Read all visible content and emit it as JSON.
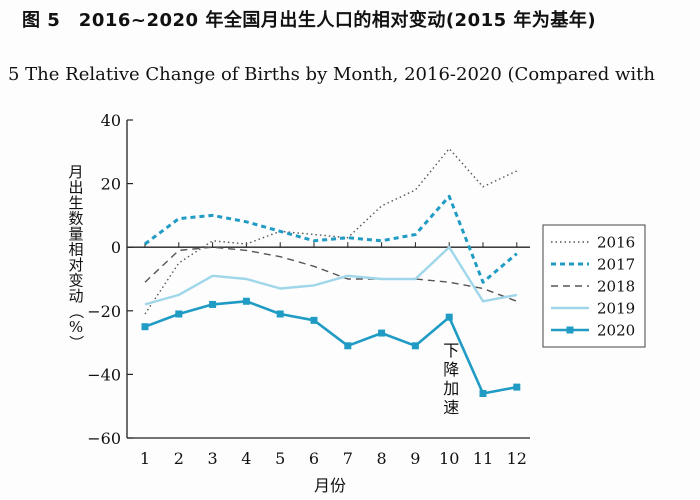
{
  "title_cn": "图 5　2016~2020 年全国月出生人口的相对变动(2015 年为基年)",
  "title_en": "5  The Relative Change of Births by Month, 2016-2020 (Compared with",
  "chart_data": {
    "type": "line",
    "xlabel": "月份",
    "ylabel": "月出生数量相对变动（%）",
    "x": [
      1,
      2,
      3,
      4,
      5,
      6,
      7,
      8,
      9,
      10,
      11,
      12
    ],
    "ylim": [
      -60,
      40
    ],
    "yticks": [
      40,
      20,
      0,
      -20,
      -40,
      -60
    ],
    "grid": false,
    "legend_position": "right",
    "series": [
      {
        "name": "2016",
        "style": "dotted",
        "color": "#555555",
        "values": [
          -21,
          -5,
          2,
          1,
          5,
          4,
          3,
          13,
          18,
          31,
          19,
          24
        ]
      },
      {
        "name": "2017",
        "style": "dashed-thick",
        "color": "#1f9bc4",
        "values": [
          1,
          9,
          10,
          8,
          5,
          2,
          3,
          2,
          4,
          16,
          -11,
          -2
        ]
      },
      {
        "name": "2018",
        "style": "dashed",
        "color": "#555555",
        "values": [
          -11,
          -1,
          0,
          -1,
          -3,
          -6,
          -10,
          -10,
          -10,
          -11,
          -13,
          -17
        ]
      },
      {
        "name": "2019",
        "style": "solid-light",
        "color": "#9fd6ea",
        "values": [
          -18,
          -15,
          -9,
          -10,
          -13,
          -12,
          -9,
          -10,
          -10,
          0,
          -17,
          -15
        ]
      },
      {
        "name": "2020",
        "style": "solid-square",
        "color": "#1f9bc4",
        "values": [
          -25,
          -21,
          -18,
          -17,
          -21,
          -23,
          -31,
          -27,
          -31,
          -22,
          -46,
          -44
        ]
      }
    ],
    "annotation": {
      "text": "下降加速",
      "x": 10,
      "y": -32
    }
  }
}
